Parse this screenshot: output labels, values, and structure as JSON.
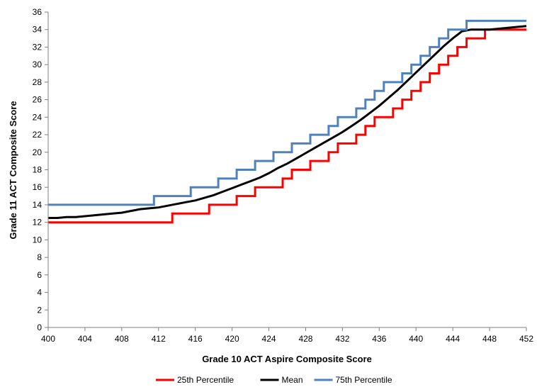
{
  "chart_data": {
    "type": "line",
    "title": "",
    "xlabel": "Grade 10 ACT Aspire Composite Score",
    "ylabel": "Grade 11 ACT Composite Score",
    "xlim": [
      400,
      452
    ],
    "ylim": [
      0,
      36
    ],
    "x_ticks": [
      400,
      404,
      408,
      412,
      416,
      420,
      424,
      428,
      432,
      436,
      440,
      444,
      448,
      452
    ],
    "y_ticks": [
      0,
      2,
      4,
      6,
      8,
      10,
      12,
      14,
      16,
      18,
      20,
      22,
      24,
      26,
      28,
      30,
      32,
      34,
      36
    ],
    "grid": false,
    "legend_position": "bottom",
    "x": [
      400,
      401,
      402,
      403,
      404,
      405,
      406,
      407,
      408,
      409,
      410,
      411,
      412,
      413,
      414,
      415,
      416,
      417,
      418,
      419,
      420,
      421,
      422,
      423,
      424,
      425,
      426,
      427,
      428,
      429,
      430,
      431,
      432,
      433,
      434,
      435,
      436,
      437,
      438,
      439,
      440,
      441,
      442,
      443,
      444,
      445,
      446,
      447,
      448,
      449,
      450,
      451,
      452
    ],
    "series": [
      {
        "name": "25th Percentile",
        "color": "#ff0000",
        "step": true,
        "values": [
          12,
          12,
          12,
          12,
          12,
          12,
          12,
          12,
          12,
          12,
          12,
          12,
          12,
          12,
          13,
          13,
          13,
          13,
          14,
          14,
          14,
          15,
          15,
          16,
          16,
          16,
          17,
          18,
          18,
          19,
          19,
          20,
          21,
          21,
          22,
          23,
          24,
          24,
          25,
          26,
          27,
          28,
          29,
          30,
          31,
          32,
          33,
          33,
          34,
          34,
          34,
          34,
          34
        ]
      },
      {
        "name": "Mean",
        "color": "#000000",
        "step": false,
        "values": [
          12.5,
          12.5,
          12.6,
          12.6,
          12.7,
          12.8,
          12.9,
          13.0,
          13.1,
          13.3,
          13.5,
          13.6,
          13.7,
          13.9,
          14.1,
          14.3,
          14.5,
          14.8,
          15.1,
          15.5,
          15.9,
          16.3,
          16.7,
          17.1,
          17.6,
          18.2,
          18.7,
          19.3,
          19.9,
          20.5,
          21.1,
          21.7,
          22.3,
          23.0,
          23.7,
          24.5,
          25.3,
          26.2,
          27.1,
          28.1,
          29.1,
          30.1,
          31.1,
          32.1,
          33.0,
          33.8,
          34.0,
          34.0,
          34.0,
          34.1,
          34.2,
          34.3,
          34.4
        ]
      },
      {
        "name": "75th Percentile",
        "color": "#4f81bd",
        "step": true,
        "values": [
          14,
          14,
          14,
          14,
          14,
          14,
          14,
          14,
          14,
          14,
          14,
          14,
          15,
          15,
          15,
          15,
          16,
          16,
          16,
          17,
          17,
          18,
          18,
          19,
          19,
          20,
          20,
          21,
          21,
          22,
          22,
          23,
          24,
          24,
          25,
          26,
          27,
          28,
          28,
          29,
          30,
          31,
          32,
          33,
          34,
          34,
          35,
          35,
          35,
          35,
          35,
          35,
          35
        ]
      }
    ]
  }
}
